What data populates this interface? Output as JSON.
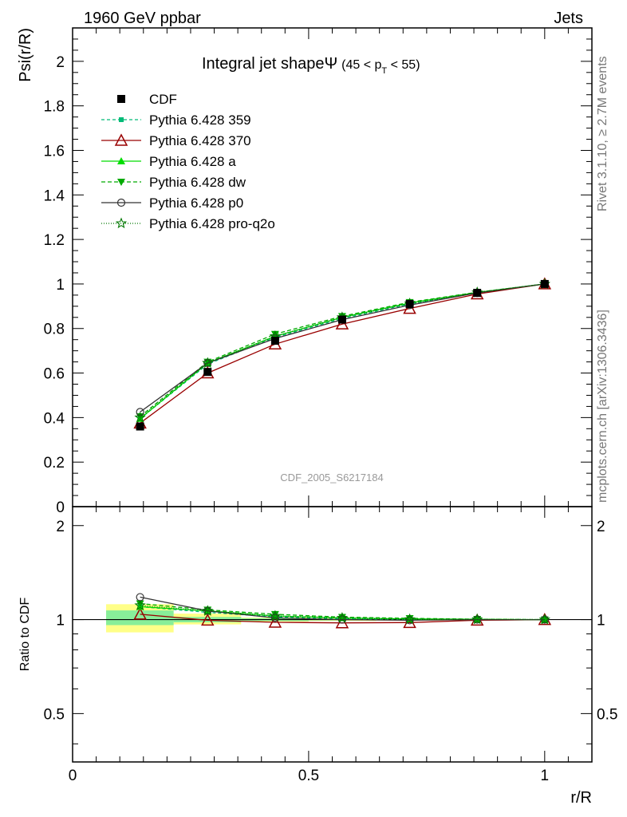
{
  "header": {
    "left": "1960 GeV ppbar",
    "right": "Jets",
    "side_top": "Rivet 3.1.10, ≥ 2.7M events",
    "side_bottom": "mcplots.cern.ch [arXiv:1306.3436]"
  },
  "chart_data": [
    {
      "panel": "main",
      "type": "line",
      "title_main": "Integral jet shapeΨ",
      "title_sub": "(45 < p",
      "title_subscript": "T",
      "title_end": " < 55)",
      "ylabel": "Psi(r/R)",
      "watermark": "CDF_2005_S6217184",
      "xlim": [
        0,
        1.1
      ],
      "ylim": [
        0,
        2.15
      ],
      "yticks": [
        0,
        0.2,
        0.4,
        0.6,
        0.8,
        1,
        1.2,
        1.4,
        1.6,
        1.8,
        2
      ],
      "ytick_labels": [
        "0",
        "0.2",
        "0.4",
        "0.6",
        "0.8",
        "1",
        "1.2",
        "1.4",
        "1.6",
        "1.8",
        "2"
      ],
      "x": [
        0.143,
        0.286,
        0.429,
        0.571,
        0.714,
        0.857,
        1.0
      ],
      "series": [
        {
          "name": "CDF",
          "color": "#000000",
          "marker": "square",
          "dash": "",
          "values": [
            0.36,
            0.605,
            0.745,
            0.84,
            0.91,
            0.96,
            1.0
          ]
        },
        {
          "name": "Pythia 6.428 359",
          "color": "#00bb77",
          "marker": "smallsquare",
          "dash": "4,3",
          "values": [
            0.395,
            0.64,
            0.76,
            0.845,
            0.91,
            0.96,
            1.0
          ]
        },
        {
          "name": "Pythia 6.428 370",
          "color": "#990000",
          "marker": "opentriangle",
          "dash": "",
          "values": [
            0.375,
            0.6,
            0.73,
            0.82,
            0.89,
            0.955,
            1.0
          ]
        },
        {
          "name": "Pythia 6.428 a",
          "color": "#00dd00",
          "marker": "triangle",
          "dash": "",
          "values": [
            0.395,
            0.645,
            0.765,
            0.85,
            0.915,
            0.962,
            1.0
          ]
        },
        {
          "name": "Pythia 6.428 dw",
          "color": "#00aa00",
          "marker": "downtriangle",
          "dash": "5,3",
          "values": [
            0.405,
            0.65,
            0.775,
            0.855,
            0.918,
            0.963,
            1.0
          ]
        },
        {
          "name": "Pythia 6.428 p0",
          "color": "#333333",
          "marker": "opencircle",
          "dash": "",
          "values": [
            0.425,
            0.645,
            0.755,
            0.84,
            0.905,
            0.96,
            1.0
          ]
        },
        {
          "name": "Pythia 6.428 pro-q2o",
          "color": "#007700",
          "marker": "star",
          "dash": "1,2",
          "values": [
            0.4,
            0.645,
            0.765,
            0.85,
            0.912,
            0.962,
            1.0
          ]
        }
      ]
    },
    {
      "panel": "ratio",
      "type": "line",
      "ylabel": "Ratio to CDF",
      "xlabel": "r/R",
      "xlim": [
        0,
        1.1
      ],
      "ylim": [
        0.35,
        2.3
      ],
      "log_y": true,
      "yticks": [
        0.5,
        1,
        2
      ],
      "ytick_labels": [
        "0.5",
        "1",
        "2"
      ],
      "xticks": [
        0,
        0.5,
        1
      ],
      "xtick_labels": [
        "0",
        "0.5",
        "1"
      ],
      "x": [
        0.143,
        0.286,
        0.429,
        0.571,
        0.714,
        0.857,
        1.0
      ],
      "bands": [
        {
          "x0": 0.071,
          "x1": 0.214,
          "yellow": [
            0.91,
            1.12
          ],
          "green": [
            0.96,
            1.07
          ]
        },
        {
          "x0": 0.214,
          "x1": 0.357,
          "yellow": [
            0.965,
            1.045
          ],
          "green": [
            0.98,
            1.02
          ]
        },
        {
          "x0": 0.357,
          "x1": 0.5,
          "yellow": [
            0.985,
            1.015
          ],
          "green": [
            0.99,
            1.01
          ]
        },
        {
          "x0": 0.5,
          "x1": 0.643,
          "yellow": [
            0.99,
            1.01
          ],
          "green": [
            0.994,
            1.006
          ]
        },
        {
          "x0": 0.643,
          "x1": 0.786,
          "yellow": [
            0.993,
            1.007
          ],
          "green": [
            0.996,
            1.004
          ]
        },
        {
          "x0": 0.786,
          "x1": 0.929,
          "yellow": [
            0.995,
            1.005
          ],
          "green": [
            0.997,
            1.003
          ]
        },
        {
          "x0": 0.929,
          "x1": 1.071,
          "yellow": [
            0.998,
            1.002
          ],
          "green": [
            0.999,
            1.001
          ]
        }
      ],
      "series": [
        {
          "name": "Pythia 6.428 359",
          "color": "#00bb77",
          "marker": "smallsquare",
          "dash": "4,3",
          "values": [
            1.1,
            1.055,
            1.02,
            1.006,
            1.0,
            1.0,
            1.0
          ]
        },
        {
          "name": "Pythia 6.428 370",
          "color": "#990000",
          "marker": "opentriangle",
          "dash": "",
          "values": [
            1.04,
            0.995,
            0.98,
            0.976,
            0.978,
            0.995,
            1.0
          ]
        },
        {
          "name": "Pythia 6.428 a",
          "color": "#00dd00",
          "marker": "triangle",
          "dash": "",
          "values": [
            1.1,
            1.066,
            1.027,
            1.012,
            1.005,
            1.002,
            1.0
          ]
        },
        {
          "name": "Pythia 6.428 dw",
          "color": "#00aa00",
          "marker": "downtriangle",
          "dash": "5,3",
          "values": [
            1.125,
            1.074,
            1.04,
            1.018,
            1.009,
            1.003,
            1.0
          ]
        },
        {
          "name": "Pythia 6.428 p0",
          "color": "#333333",
          "marker": "opencircle",
          "dash": "",
          "values": [
            1.18,
            1.066,
            1.013,
            1.0,
            0.995,
            1.0,
            1.0
          ]
        },
        {
          "name": "Pythia 6.428 pro-q2o",
          "color": "#007700",
          "marker": "star",
          "dash": "1,2",
          "values": [
            1.11,
            1.066,
            1.027,
            1.012,
            1.002,
            1.002,
            1.0
          ]
        }
      ]
    }
  ]
}
